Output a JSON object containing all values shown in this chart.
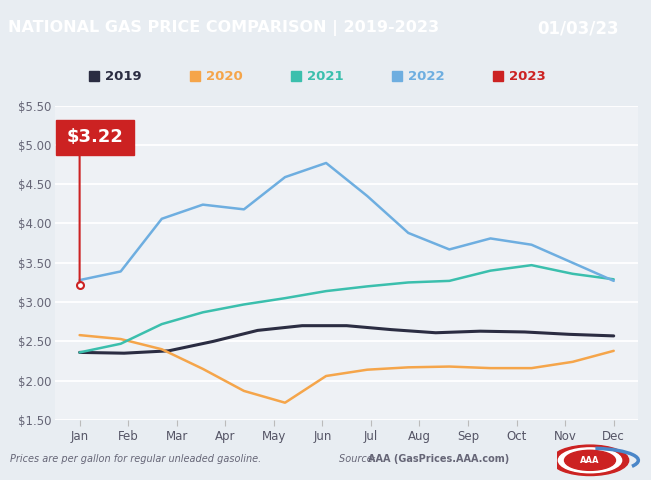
{
  "title": "NATIONAL GAS PRICE COMPARISON | 2019-2023",
  "date_label": "01/03/23",
  "title_bg": "#1a5894",
  "date_bg": "#4a86c8",
  "background_color": "#e8edf2",
  "plot_bg": "#eef1f5",
  "ylabel_ticks": [
    "$1.50",
    "$2.00",
    "$2.50",
    "$3.00",
    "$3.50",
    "$4.00",
    "$4.50",
    "$5.00",
    "$5.50"
  ],
  "yticks": [
    1.5,
    2.0,
    2.5,
    3.0,
    3.5,
    4.0,
    4.5,
    5.0,
    5.5
  ],
  "months": [
    "Jan",
    "Feb",
    "Mar",
    "Apr",
    "May",
    "Jun",
    "Jul",
    "Aug",
    "Sep",
    "Oct",
    "Nov",
    "Dec"
  ],
  "annotation_value": "$3.22",
  "annotation_color": "#cc2222",
  "footer_left": "Prices are per gallon for regular unleaded gasoline.",
  "footer_right": "Source: AAA (GasPrices.AAA.com)",
  "series_2019_color": "#2b2d42",
  "series_2019_lw": 2.2,
  "series_2019_values": [
    2.36,
    2.35,
    2.38,
    2.5,
    2.64,
    2.7,
    2.7,
    2.65,
    2.61,
    2.63,
    2.62,
    2.59,
    2.57
  ],
  "series_2020_color": "#f5a54a",
  "series_2020_lw": 1.8,
  "series_2020_values": [
    2.58,
    2.53,
    2.4,
    2.15,
    1.87,
    1.72,
    2.06,
    2.14,
    2.17,
    2.18,
    2.16,
    2.16,
    2.24,
    2.38
  ],
  "series_2021_color": "#3bbfad",
  "series_2021_lw": 1.8,
  "series_2021_values": [
    2.36,
    2.47,
    2.72,
    2.87,
    2.97,
    3.05,
    3.14,
    3.2,
    3.25,
    3.27,
    3.4,
    3.47,
    3.36,
    3.29
  ],
  "series_2022_color": "#6eaee0",
  "series_2022_lw": 1.8,
  "series_2022_values": [
    3.28,
    3.39,
    4.06,
    4.24,
    4.18,
    4.59,
    4.77,
    4.35,
    3.88,
    3.67,
    3.81,
    3.73,
    3.5,
    3.27
  ],
  "series_2023_color": "#cc2222",
  "series_2023_value": 3.22,
  "legend_order": [
    "2019",
    "2020",
    "2021",
    "2022",
    "2023"
  ],
  "legend_colors": [
    "#2b2d42",
    "#f5a54a",
    "#3bbfad",
    "#6eaee0",
    "#cc2222"
  ]
}
